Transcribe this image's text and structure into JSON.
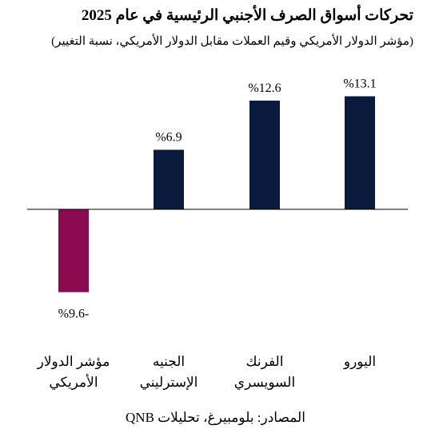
{
  "header": {
    "title": "تحركات أسواق الصرف الأجنبي الرئيسية في عام 2025",
    "subtitle": "(مؤشر الدولار الأمريكي وقيم العملات مقابل الدولار الأمريكي، نسبة التغيير)"
  },
  "footer": {
    "source": "المصادر: بلومبيرغ، تحليلات QNB"
  },
  "chart_data": {
    "type": "bar",
    "title": "تحركات أسواق الصرف الأجنبي الرئيسية في عام 2025",
    "subtitle": "(مؤشر الدولار الأمريكي وقيم العملات مقابل الدولار الأمريكي، نسبة التغيير)",
    "categories": [
      [
        "مؤشر الدولار",
        "الأمريكي"
      ],
      [
        "الجنيه",
        "الإسترليني"
      ],
      [
        "الفرنك",
        "السويسري"
      ],
      [
        "اليورو"
      ]
    ],
    "values": [
      -9.6,
      6.9,
      12.6,
      13.1
    ],
    "data_labels": [
      "%9.6-",
      "%6.9",
      "%12.6",
      "%13.1"
    ],
    "colors": [
      "#8b0a50",
      "#0a1a3c",
      "#0a1a3c",
      "#0a1a3c"
    ],
    "ylim": [
      -11,
      15
    ],
    "grid": false,
    "legend": "none"
  }
}
